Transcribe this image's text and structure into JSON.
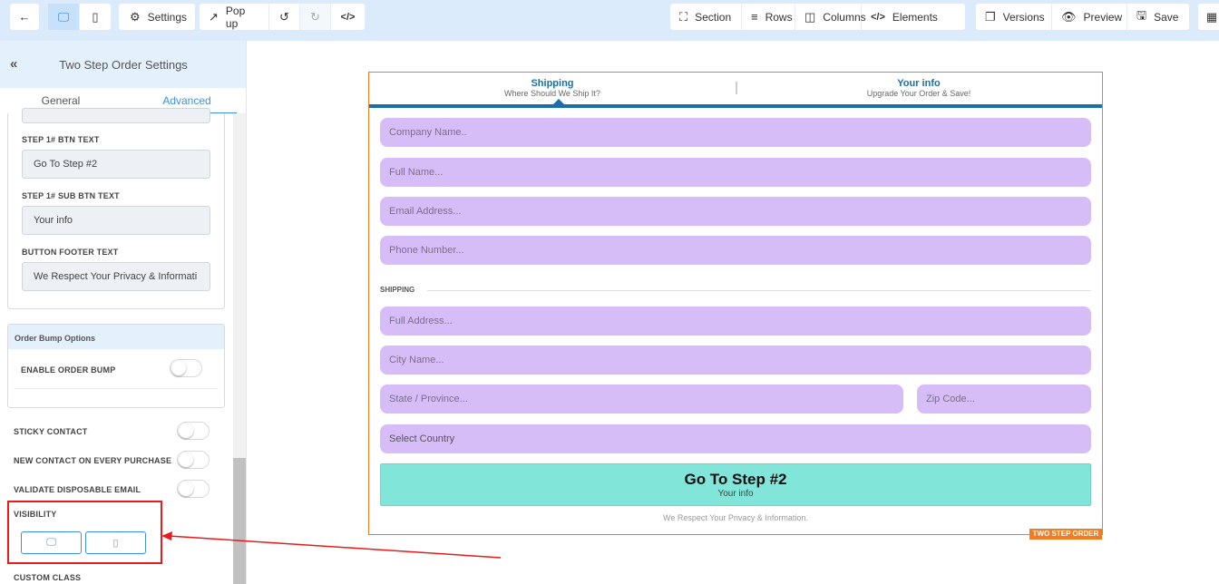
{
  "toolbar": {
    "back_icon": "arrow-left-icon",
    "settings": "Settings",
    "popup": "Pop up",
    "section": "Section",
    "rows": "Rows",
    "columns": "Columns",
    "elements": "Elements",
    "versions": "Versions",
    "preview": "Preview",
    "save": "Save"
  },
  "sidebar": {
    "title": "Two Step Order Settings",
    "tabs": [
      "General",
      "Advanced"
    ],
    "active_tab": "Advanced",
    "fields": [
      {
        "label": "STEP 1# BTN TEXT",
        "value": "Go To Step #2"
      },
      {
        "label": "STEP 1# SUB BTN TEXT",
        "value": "Your info"
      },
      {
        "label": "BUTTON FOOTER TEXT",
        "value": "We Respect Your Privacy & Informati"
      }
    ],
    "order_bump": {
      "title": "Order Bump Options",
      "enable_label": "ENABLE ORDER BUMP",
      "enabled": false
    },
    "toggles": [
      {
        "label": "STICKY CONTACT",
        "on": false
      },
      {
        "label": "NEW CONTACT ON EVERY PURCHASE",
        "on": false
      },
      {
        "label": "VALIDATE DISPOSABLE EMAIL",
        "on": false
      }
    ],
    "visibility_label": "VISIBILITY",
    "custom_class_label": "CUSTOM CLASS"
  },
  "form": {
    "steps": [
      {
        "title": "Shipping",
        "subtitle": "Where Should We Ship It?"
      },
      {
        "title": "Your info",
        "subtitle": "Upgrade Your Order & Save!"
      }
    ],
    "fields": [
      "Company Name..",
      "Full Name...",
      "Email Address...",
      "Phone Number..."
    ],
    "shipping_heading": "SHIPPING",
    "shipping_fields": [
      "Full Address...",
      "City Name...",
      "State / Province...",
      "Zip Code...",
      "Select Country"
    ],
    "button_title": "Go To Step #2",
    "button_sub": "Your info",
    "footer": "We Respect Your Privacy & Information.",
    "badge": "TWO STEP ORDER"
  },
  "colors": {
    "accent": "#3d8fe8",
    "step_bar": "#1a6fa8",
    "field_bg": "#d7bdf8",
    "button_bg": "#82e5d9",
    "frame": "#f47c20",
    "highlight": "#e81c1c"
  }
}
